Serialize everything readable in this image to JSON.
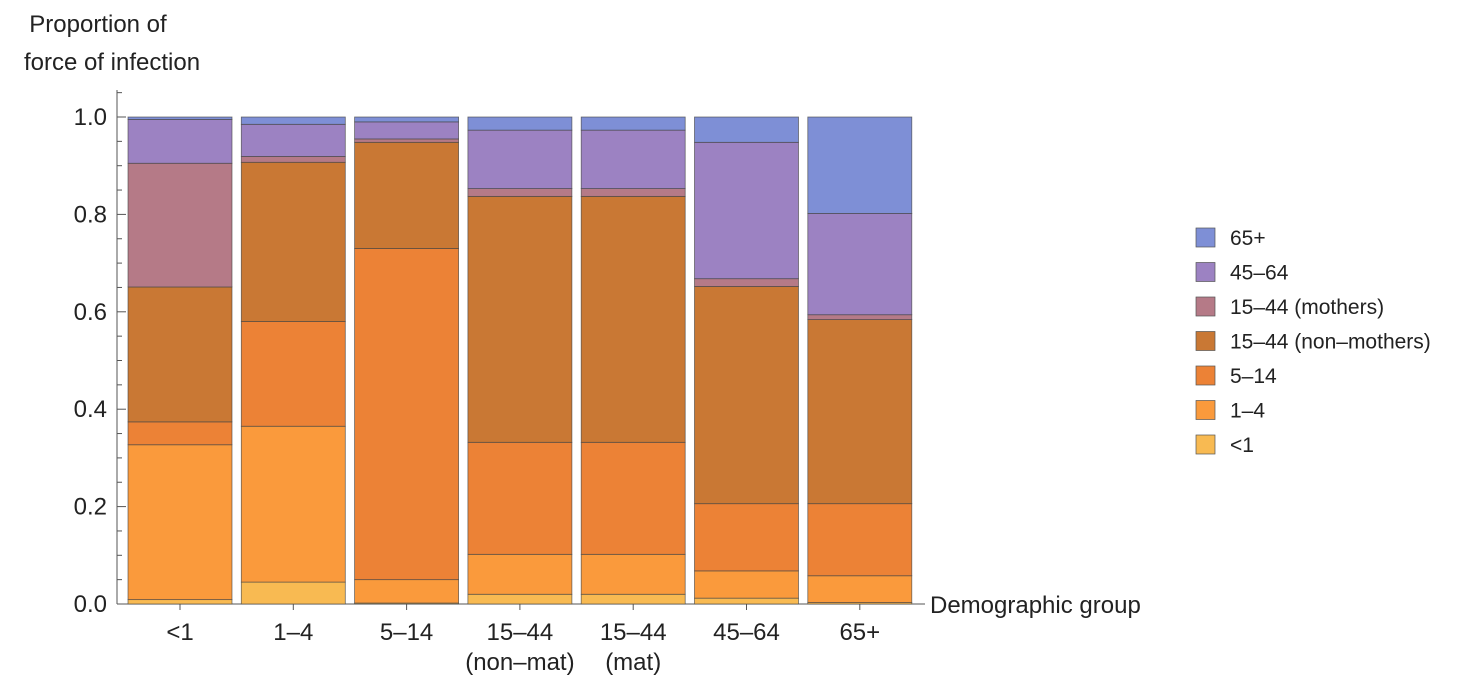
{
  "chart_data": {
    "type": "bar",
    "stacked": true,
    "ylabel_lines": [
      "Proportion of",
      "force of infection"
    ],
    "xlabel": "Demographic group",
    "ylim": [
      0,
      1.0
    ],
    "y_ticks": [
      "0.0",
      "0.2",
      "0.4",
      "0.6",
      "0.8",
      "1.0"
    ],
    "categories": [
      "<1",
      "1–4",
      "5–14",
      "15–44\n(non–mat)",
      "15–44\n(mat)",
      "45–64",
      "65+"
    ],
    "legend_position": "right",
    "series": [
      {
        "name": "<1",
        "color": "#F8BA52",
        "values": [
          0.009,
          0.045,
          0.002,
          0.02,
          0.02,
          0.012,
          0.003
        ]
      },
      {
        "name": "1–4",
        "color": "#FA9A3C",
        "values": [
          0.318,
          0.32,
          0.048,
          0.082,
          0.082,
          0.056,
          0.055
        ]
      },
      {
        "name": "5–14",
        "color": "#EC8236",
        "values": [
          0.047,
          0.215,
          0.68,
          0.23,
          0.23,
          0.138,
          0.148
        ]
      },
      {
        "name": "15–44 (non–mothers)",
        "color": "#C97834",
        "values": [
          0.277,
          0.327,
          0.218,
          0.505,
          0.505,
          0.446,
          0.378
        ]
      },
      {
        "name": "15–44 (mothers)",
        "color": "#B57A87",
        "values": [
          0.254,
          0.012,
          0.007,
          0.016,
          0.016,
          0.016,
          0.01
        ]
      },
      {
        "name": "45–64",
        "color": "#9C82C2",
        "values": [
          0.09,
          0.066,
          0.035,
          0.12,
          0.12,
          0.28,
          0.208
        ]
      },
      {
        "name": "65+",
        "color": "#7E8FD6",
        "values": [
          0.005,
          0.015,
          0.01,
          0.027,
          0.027,
          0.052,
          0.198
        ]
      }
    ],
    "legend_order": [
      "65+",
      "45–64",
      "15–44 (mothers)",
      "15–44 (non–mothers)",
      "5–14",
      "1–4",
      "<1"
    ]
  }
}
